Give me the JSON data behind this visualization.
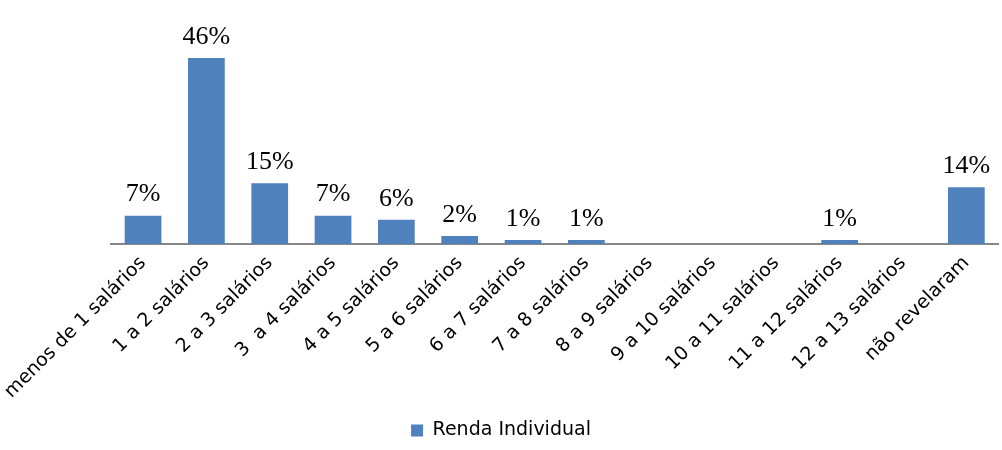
{
  "chart_data": {
    "type": "bar",
    "categories": [
      "menos de 1 salários",
      "1 a 2 salários",
      "2 a 3 salários",
      "3  a 4 salários",
      "4 a 5 salários",
      "5 a 6 salários",
      "6 a 7 salários",
      "7 a 8 salários",
      "8 a 9 salários",
      "9 a 10 salários",
      "10 a 11 salários",
      "11 a 12 salários",
      "12 a 13 salários",
      "não revelaram"
    ],
    "series": [
      {
        "name": "Renda Individual",
        "color": "#4f81bd",
        "values": [
          7,
          46,
          15,
          7,
          6,
          2,
          1,
          1,
          0,
          0,
          0,
          1,
          0,
          14
        ],
        "value_labels": [
          "7%",
          "46%",
          "15%",
          "7%",
          "6%",
          "2%",
          "1%",
          "1%",
          null,
          null,
          null,
          "1%",
          null,
          "14%"
        ]
      }
    ],
    "legend": "bottom",
    "grid": false
  }
}
